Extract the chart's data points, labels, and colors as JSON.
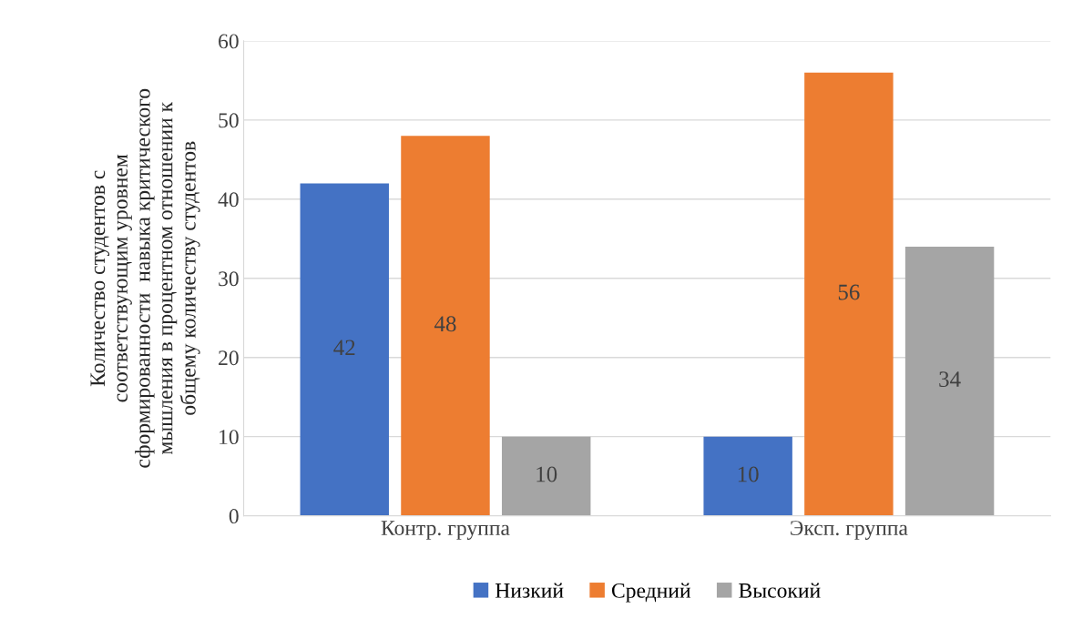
{
  "chart_data": {
    "type": "bar",
    "categories": [
      "Контр. группа",
      "Эксп. группа"
    ],
    "ylabel": "Количество студентов с\nсоответствующим уровнем\nсформированности  навыка критического\nмышления в процентном отношении к\nобщему количеству студентов",
    "series": [
      {
        "name": "Низкий",
        "color": "#4472c4",
        "values": [
          42,
          10
        ]
      },
      {
        "name": "Средний",
        "color": "#ed7d31",
        "values": [
          48,
          56
        ]
      },
      {
        "name": "Высокий",
        "color": "#a5a5a5",
        "values": [
          10,
          34
        ]
      }
    ],
    "ylim": [
      0,
      60
    ],
    "yticks": [
      0,
      10,
      20,
      30,
      40,
      50,
      60
    ],
    "grid": "y",
    "legend": "bottom",
    "data_labels": true
  }
}
